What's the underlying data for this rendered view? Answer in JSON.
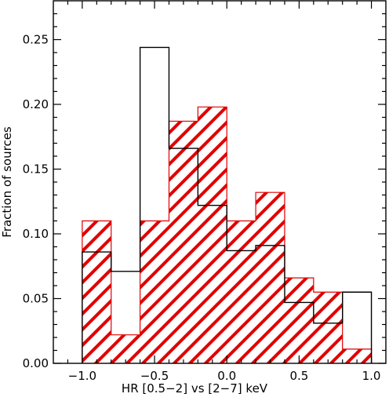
{
  "chart_data": {
    "type": "histogram",
    "title": "",
    "xlabel": "HR [0.5−2] vs [2−7] keV",
    "ylabel": "Fraction of sources",
    "xlim": [
      -1.2,
      1.1
    ],
    "ylim": [
      0.0,
      0.28
    ],
    "x_ticks": [
      -1.0,
      -0.5,
      0.0,
      0.5,
      1.0
    ],
    "x_tick_labels": [
      "−1.0",
      "−0.5",
      "0.0",
      "0.5",
      "1.0"
    ],
    "y_ticks": [
      0.0,
      0.05,
      0.1,
      0.15,
      0.2,
      0.25
    ],
    "y_tick_labels": [
      "0.00",
      "0.05",
      "0.10",
      "0.15",
      "0.20",
      "0.25"
    ],
    "bin_edges": [
      -1.0,
      -0.8,
      -0.6,
      -0.4,
      -0.2,
      0.0,
      0.2,
      0.4,
      0.6,
      0.8,
      1.0
    ],
    "series": [
      {
        "style": "black outline",
        "color": "#000000",
        "values": [
          0.086,
          0.071,
          0.244,
          0.166,
          0.122,
          0.087,
          0.091,
          0.047,
          0.031,
          0.055
        ]
      },
      {
        "style": "red hatched",
        "color": "#e00000",
        "values": [
          0.11,
          0.022,
          0.11,
          0.187,
          0.198,
          0.11,
          0.132,
          0.066,
          0.055,
          0.011
        ]
      }
    ],
    "grid": false,
    "legend": "none"
  }
}
